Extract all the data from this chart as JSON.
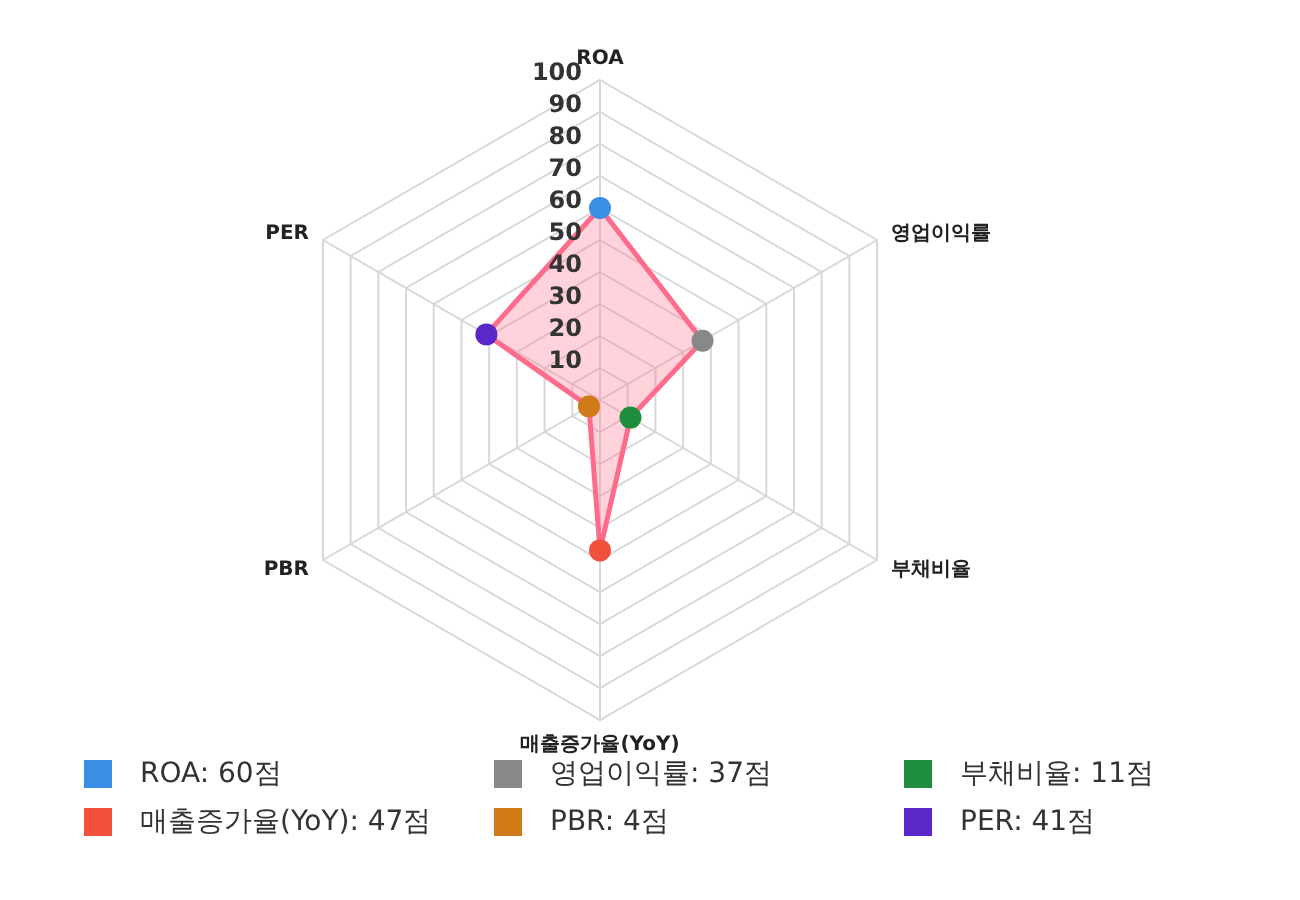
{
  "chart_data": {
    "type": "radar",
    "categories": [
      "ROA",
      "영업이익률",
      "부채비율",
      "매출증가율(YoY)",
      "PBR",
      "PER"
    ],
    "series": [
      {
        "color": "#ff6b8b",
        "values": [
          60,
          37,
          11,
          47,
          4,
          41
        ]
      }
    ],
    "colors": [
      "#3a8ee6",
      "#888888",
      "#1e8e3e",
      "#f0503c",
      "#d07a1a",
      "#5a28c8"
    ],
    "value_labels": [
      "ROA: 60점",
      "영업이익률: 37점",
      "부채비율: 11점",
      "매출증가율(YoY): 47점",
      "PBR: 4점",
      "PER: 41점"
    ],
    "ylim": [
      0,
      100
    ],
    "yticks": [
      10,
      20,
      30,
      40,
      50,
      60,
      70,
      80,
      90,
      100
    ],
    "grid": true,
    "marker": "circle"
  }
}
